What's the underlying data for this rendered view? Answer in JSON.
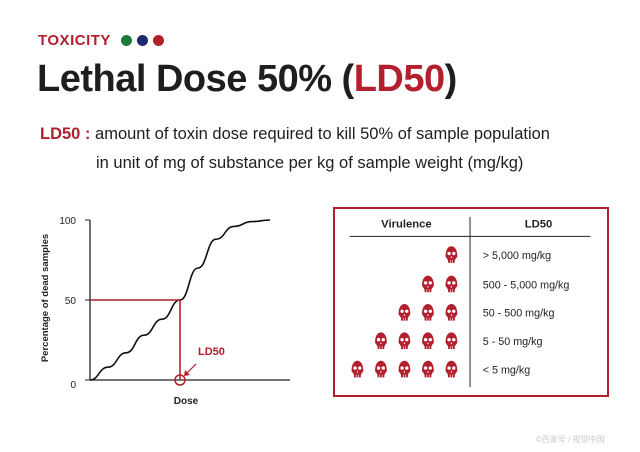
{
  "header": {
    "kicker": "TOXICITY",
    "dot_colors": [
      "#1a7a3a",
      "#1e2a6e",
      "#b21f2d"
    ]
  },
  "title": {
    "main": "Lethal Dose 50% (",
    "accent": "LD50",
    "close": ")"
  },
  "definition": {
    "term": "LD50 :",
    "line1": "amount of toxin dose required to kill 50% of sample population",
    "line2": "in unit of mg of substance per kg of sample weight (mg/kg)"
  },
  "chart_data": {
    "type": "line",
    "xlabel": "Dose",
    "ylabel": "Percentage of dead samples",
    "yticks": [
      "100",
      "50",
      "0"
    ],
    "ylim": [
      0,
      100
    ],
    "series": [
      {
        "x": [
          0,
          0.1,
          0.2,
          0.3,
          0.4,
          0.5,
          0.6,
          0.7,
          0.8,
          0.9,
          1.0
        ],
        "values": [
          0,
          8,
          17,
          28,
          38,
          50,
          70,
          88,
          96,
          99,
          100
        ]
      }
    ],
    "ld50_marker": {
      "x": 0.5,
      "y": 50
    },
    "annotation": "LD50",
    "colors": {
      "curve": "#111111",
      "marker": "#b21f2d"
    }
  },
  "virulence_table": {
    "headers": {
      "virulence": "Virulence",
      "ld50": "LD50"
    },
    "rows": [
      {
        "skulls": 1,
        "ld50": "> 5,000 mg/kg"
      },
      {
        "skulls": 2,
        "ld50": "500 - 5,000 mg/kg"
      },
      {
        "skulls": 3,
        "ld50": "50 - 500 mg/kg"
      },
      {
        "skulls": 4,
        "ld50": "5 - 50 mg/kg"
      },
      {
        "skulls": 5,
        "ld50": "< 5 mg/kg"
      }
    ],
    "skull_color": "#b21f2d",
    "border_color": "#b21f2d"
  },
  "watermark": "©百家号 / 视觉中国"
}
